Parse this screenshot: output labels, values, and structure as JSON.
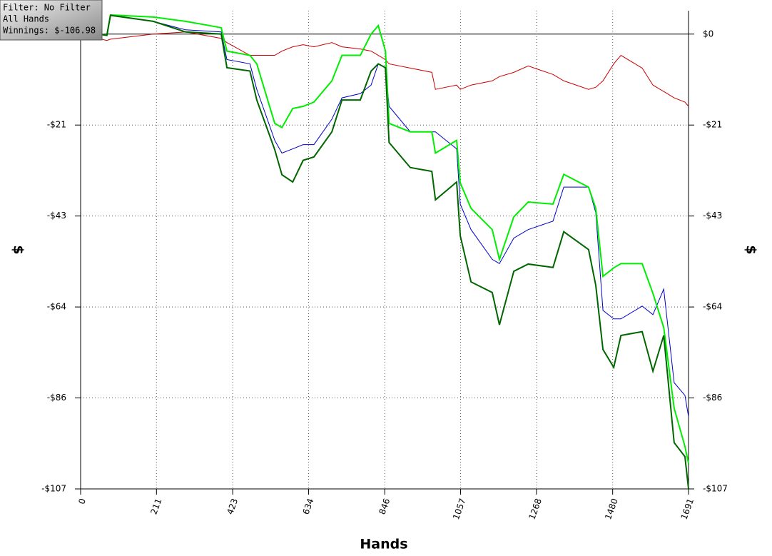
{
  "chart_data": {
    "type": "line",
    "x_label": "Hands",
    "y_label": "$",
    "annotations": [
      "Filter: No Filter",
      "All Hands",
      "Winnings: $-106.98"
    ],
    "x": [
      0,
      73,
      83,
      202,
      292,
      391,
      407,
      471,
      490,
      540,
      560,
      590,
      619,
      649,
      699,
      727,
      778,
      808,
      828,
      848,
      858,
      917,
      977,
      987,
      1046,
      1056,
      1086,
      1145,
      1165,
      1205,
      1245,
      1314,
      1344,
      1413,
      1433,
      1453,
      1483,
      1503,
      1562,
      1592,
      1622,
      1651,
      1681,
      1691
    ],
    "series": [
      {
        "color": "#cc0000",
        "width": 1,
        "values": [
          0,
          -1.5,
          -1.2,
          0,
          0.5,
          -1,
          -2,
          -5,
          -5,
          -5,
          -4,
          -3,
          -2.5,
          -3,
          -2,
          -3,
          -3.5,
          -4,
          -5,
          -6,
          -7,
          -8,
          -9,
          -13,
          -12,
          -13,
          -12,
          -11,
          -10,
          -9,
          -7.5,
          -9.5,
          -11,
          -13,
          -12.5,
          -11,
          -7,
          -5,
          -8,
          -12,
          -13.5,
          -15,
          -16,
          -17
        ]
      },
      {
        "color": "#0000cc",
        "width": 1,
        "values": [
          0.5,
          -0.3,
          4.5,
          3,
          1,
          0.5,
          -6,
          -7,
          -13,
          -25,
          -28,
          -27,
          -26,
          -26,
          -20,
          -15,
          -14,
          -12,
          -7,
          -8,
          -17,
          -23,
          -23,
          -23,
          -27,
          -40,
          -46,
          -53,
          -54,
          -48,
          -46,
          -44,
          -36,
          -36,
          -42,
          -65,
          -67,
          -67,
          -64,
          -66,
          -60,
          -82,
          -85,
          -90
        ]
      },
      {
        "color": "#00ee00",
        "width": 2,
        "values": [
          1,
          -0.3,
          4.5,
          4,
          3,
          1.5,
          -4,
          -5,
          -7,
          -21,
          -22,
          -17.5,
          -17,
          -16,
          -11,
          -5,
          -5,
          0,
          2,
          -4,
          -21,
          -23,
          -23,
          -28,
          -25,
          -35,
          -41,
          -46,
          -53,
          -43,
          -39.5,
          -40,
          -33,
          -36,
          -41,
          -57,
          -55,
          -54,
          -54,
          -61,
          -69,
          -88,
          -97,
          -101
        ]
      },
      {
        "color": "#006600",
        "width": 2,
        "values": [
          0.5,
          -0.3,
          4.4,
          3,
          0.5,
          0,
          -7.9,
          -8.7,
          -15.5,
          -27.2,
          -33.1,
          -34.8,
          -29.7,
          -28.9,
          -23,
          -15.5,
          -15.5,
          -8.7,
          -7,
          -7.9,
          -25.5,
          -31.4,
          -32.3,
          -39,
          -34.8,
          -47.4,
          -58.3,
          -60.8,
          -68.4,
          -55.8,
          -54.1,
          -54.9,
          -46.5,
          -50.7,
          -59.1,
          -74.2,
          -78.4,
          -70.9,
          -70,
          -79.3,
          -70.9,
          -96.1,
          -99.4,
          -106.98
        ]
      }
    ],
    "xlim": [
      0,
      1691
    ],
    "xticks": [
      0,
      211,
      423,
      634,
      846,
      1057,
      1268,
      1480,
      1691
    ],
    "ylim": [
      -107,
      5.5
    ],
    "yticks": [
      {
        "value": 0,
        "label": "$0"
      },
      {
        "value": -21.4,
        "label": "-$21"
      },
      {
        "value": -42.8,
        "label": "-$43"
      },
      {
        "value": -64.2,
        "label": "-$64"
      },
      {
        "value": -85.6,
        "label": "-$86"
      },
      {
        "value": -107,
        "label": "-$107"
      }
    ],
    "grid": true
  }
}
